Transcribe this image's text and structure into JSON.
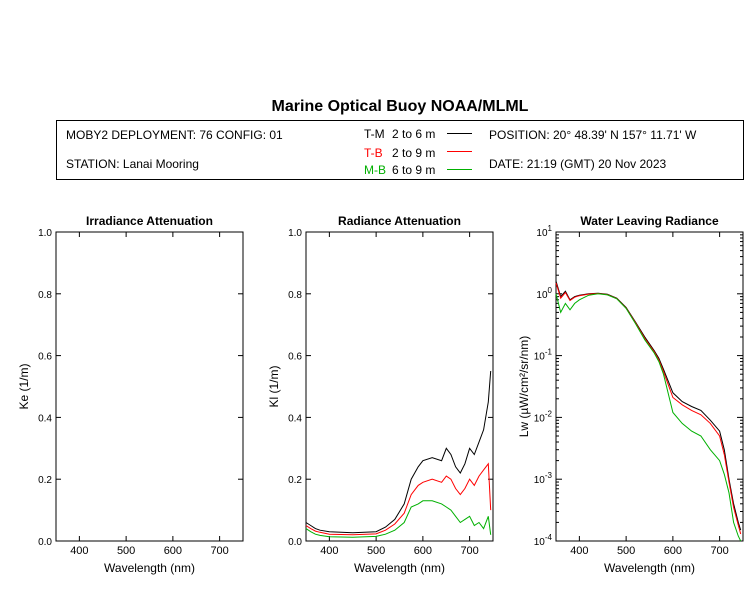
{
  "page": {
    "title": "Marine Optical Buoy NOAA/MLML"
  },
  "header": {
    "deployment": "MOBY2 DEPLOYMENT: 76 CONFIG: 01",
    "station": "STATION: Lanai Mooring",
    "position": "POSITION: 20° 48.39' N   157° 11.71' W",
    "date": "DATE: 21:19 (GMT) 20 Nov 2023",
    "legend": [
      {
        "code": "T-M",
        "range": "2 to 6  m",
        "color": "#000000"
      },
      {
        "code": "T-B",
        "range": "2 to 9  m",
        "color": "#ff0000"
      },
      {
        "code": "M-B",
        "range": "6 to 9  m",
        "color": "#00b000"
      }
    ]
  },
  "chart_data": [
    {
      "type": "line",
      "title": "Irradiance Attenuation",
      "xlabel": "Wavelength (nm)",
      "ylabel": "Ke  (1/m)",
      "xlim": [
        350,
        750
      ],
      "ylim": [
        0,
        1.0
      ],
      "xticks": [
        "400",
        "500",
        "600",
        "700"
      ],
      "yticks": [
        "0.0",
        "0.2",
        "0.4",
        "0.6",
        "0.8",
        "1.0"
      ],
      "series": []
    },
    {
      "type": "line",
      "title": "Radiance Attenuation",
      "xlabel": "Wavelength (nm)",
      "ylabel": "Kl  (1/m)",
      "xlim": [
        350,
        750
      ],
      "ylim": [
        0,
        1.0
      ],
      "xticks": [
        "400",
        "500",
        "600",
        "700"
      ],
      "yticks": [
        "0.0",
        "0.2",
        "0.4",
        "0.6",
        "0.8",
        "1.0"
      ],
      "series": [
        {
          "name": "T-M",
          "color": "#000000",
          "x": [
            350,
            360,
            370,
            380,
            400,
            450,
            500,
            520,
            540,
            560,
            575,
            590,
            600,
            620,
            640,
            650,
            660,
            670,
            680,
            690,
            700,
            710,
            720,
            730,
            740,
            745
          ],
          "y": [
            0.06,
            0.05,
            0.04,
            0.035,
            0.03,
            0.027,
            0.03,
            0.045,
            0.07,
            0.12,
            0.2,
            0.24,
            0.26,
            0.27,
            0.26,
            0.3,
            0.28,
            0.24,
            0.22,
            0.25,
            0.3,
            0.28,
            0.32,
            0.36,
            0.45,
            0.55
          ]
        },
        {
          "name": "T-B",
          "color": "#ff0000",
          "x": [
            350,
            360,
            370,
            380,
            400,
            450,
            500,
            520,
            540,
            560,
            575,
            590,
            600,
            620,
            640,
            650,
            660,
            670,
            680,
            690,
            700,
            710,
            720,
            730,
            740,
            745
          ],
          "y": [
            0.05,
            0.04,
            0.032,
            0.028,
            0.022,
            0.02,
            0.023,
            0.035,
            0.055,
            0.09,
            0.15,
            0.18,
            0.19,
            0.2,
            0.19,
            0.21,
            0.2,
            0.17,
            0.15,
            0.17,
            0.2,
            0.18,
            0.21,
            0.23,
            0.25,
            0.1
          ]
        },
        {
          "name": "M-B",
          "color": "#00b000",
          "x": [
            350,
            360,
            370,
            380,
            400,
            450,
            500,
            520,
            540,
            560,
            575,
            590,
            600,
            620,
            640,
            650,
            660,
            670,
            680,
            690,
            700,
            710,
            720,
            730,
            740,
            745
          ],
          "y": [
            0.04,
            0.03,
            0.022,
            0.018,
            0.014,
            0.012,
            0.015,
            0.022,
            0.035,
            0.06,
            0.11,
            0.12,
            0.13,
            0.13,
            0.12,
            0.11,
            0.1,
            0.08,
            0.06,
            0.07,
            0.08,
            0.05,
            0.06,
            0.04,
            0.08,
            0.02
          ]
        }
      ]
    },
    {
      "type": "line",
      "title": "Water Leaving Radiance",
      "xlabel": "Wavelength (nm)",
      "ylabel": "Lw  (µW/cm²/sr/nm)",
      "xlim": [
        350,
        750
      ],
      "ylim": [
        0.0001,
        10
      ],
      "yscale": "log",
      "xticks": [
        "400",
        "500",
        "600",
        "700"
      ],
      "series": [
        {
          "name": "T-M",
          "color": "#000000",
          "x": [
            350,
            360,
            370,
            380,
            390,
            400,
            420,
            440,
            460,
            480,
            500,
            520,
            540,
            560,
            570,
            580,
            600,
            620,
            640,
            660,
            680,
            700,
            710,
            720,
            730,
            740,
            745
          ],
          "y": [
            1.6,
            0.9,
            1.1,
            0.8,
            0.9,
            0.95,
            1.0,
            1.02,
            0.98,
            0.85,
            0.6,
            0.35,
            0.2,
            0.12,
            0.09,
            0.06,
            0.025,
            0.018,
            0.015,
            0.013,
            0.009,
            0.006,
            0.003,
            0.001,
            0.0004,
            0.0002,
            0.00015
          ]
        },
        {
          "name": "T-B",
          "color": "#ff0000",
          "x": [
            350,
            360,
            370,
            380,
            390,
            400,
            420,
            440,
            460,
            480,
            500,
            520,
            540,
            560,
            570,
            580,
            600,
            620,
            640,
            660,
            680,
            700,
            710,
            720,
            730,
            740,
            745
          ],
          "y": [
            1.5,
            0.85,
            1.05,
            0.78,
            0.88,
            0.93,
            0.99,
            1.01,
            0.97,
            0.84,
            0.59,
            0.34,
            0.19,
            0.115,
            0.085,
            0.055,
            0.021,
            0.016,
            0.013,
            0.011,
            0.008,
            0.005,
            0.0025,
            0.0009,
            0.00035,
            0.00018,
            0.00013
          ]
        },
        {
          "name": "M-B",
          "color": "#00b000",
          "x": [
            350,
            360,
            370,
            380,
            390,
            400,
            420,
            440,
            460,
            480,
            500,
            520,
            540,
            560,
            570,
            580,
            600,
            620,
            640,
            660,
            680,
            700,
            710,
            720,
            730,
            740,
            745
          ],
          "y": [
            1.0,
            0.5,
            0.7,
            0.55,
            0.7,
            0.8,
            0.95,
            1.0,
            0.96,
            0.83,
            0.58,
            0.33,
            0.18,
            0.11,
            0.08,
            0.05,
            0.012,
            0.008,
            0.006,
            0.005,
            0.003,
            0.002,
            0.0012,
            0.0006,
            0.0002,
            0.00012,
            0.0001
          ]
        }
      ]
    }
  ]
}
